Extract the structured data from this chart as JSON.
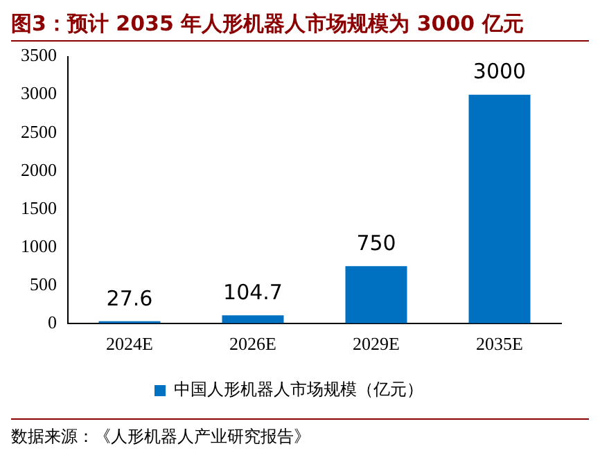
{
  "chart_data": {
    "type": "bar",
    "title": "图3：预计 2035 年人形机器人市场规模为 3000 亿元",
    "categories": [
      "2024E",
      "2026E",
      "2029E",
      "2035E"
    ],
    "series": [
      {
        "name": "中国人形机器人市场规模（亿元）",
        "color": "#0070c0",
        "values": [
          27.6,
          104.7,
          750,
          3000
        ]
      }
    ],
    "ylim": [
      0,
      3500
    ],
    "yticks": [
      0,
      500,
      1000,
      1500,
      2000,
      2500,
      3000,
      3500
    ],
    "data_labels": true,
    "grid": false,
    "legend": "bottom",
    "annotations": [
      "数据来源：《人形机器人产业研究报告》"
    ]
  }
}
